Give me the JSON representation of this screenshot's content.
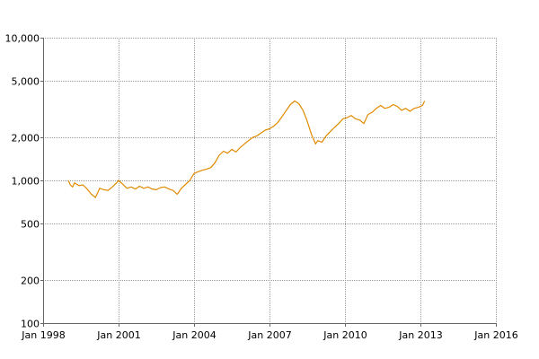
{
  "chart_data": {
    "type": "line",
    "title": "",
    "xlabel": "",
    "ylabel": "",
    "y_scale": "log",
    "ylim": [
      100,
      10000
    ],
    "xlim": [
      "1998-01",
      "2016-01"
    ],
    "grid": true,
    "legend": "none",
    "y_ticks": [
      {
        "value": 100,
        "label": "100"
      },
      {
        "value": 200,
        "label": "200"
      },
      {
        "value": 500,
        "label": "500"
      },
      {
        "value": 1000,
        "label": "1,000"
      },
      {
        "value": 2000,
        "label": "2,000"
      },
      {
        "value": 5000,
        "label": "5,000"
      },
      {
        "value": 10000,
        "label": "10,000"
      }
    ],
    "x_ticks": [
      {
        "value": "1998-01",
        "label": "Jan 1998"
      },
      {
        "value": "2001-01",
        "label": "Jan 2001"
      },
      {
        "value": "2004-01",
        "label": "Jan 2004"
      },
      {
        "value": "2007-01",
        "label": "Jan 2007"
      },
      {
        "value": "2010-01",
        "label": "Jan 2010"
      },
      {
        "value": "2013-01",
        "label": "Jan 2013"
      },
      {
        "value": "2016-01",
        "label": "Jan 2016"
      }
    ],
    "series": [
      {
        "color": "#E08A00",
        "x": [
          "1999-01",
          "1999-02",
          "1999-03",
          "1999-04",
          "1999-06",
          "1999-08",
          "1999-10",
          "1999-12",
          "2000-02",
          "2000-04",
          "2000-06",
          "2000-08",
          "2000-10",
          "2000-12",
          "2001-01",
          "2001-03",
          "2001-05",
          "2001-07",
          "2001-09",
          "2001-11",
          "2002-01",
          "2002-03",
          "2002-05",
          "2002-07",
          "2002-09",
          "2002-11",
          "2003-01",
          "2003-03",
          "2003-05",
          "2003-07",
          "2003-09",
          "2003-11",
          "2004-01",
          "2004-03",
          "2004-05",
          "2004-07",
          "2004-09",
          "2004-11",
          "2005-01",
          "2005-03",
          "2005-05",
          "2005-07",
          "2005-09",
          "2005-11",
          "2006-01",
          "2006-03",
          "2006-05",
          "2006-07",
          "2006-09",
          "2006-11",
          "2007-01",
          "2007-03",
          "2007-05",
          "2007-07",
          "2007-09",
          "2007-11",
          "2008-01",
          "2008-03",
          "2008-05",
          "2008-07",
          "2008-09",
          "2008-11",
          "2008-12",
          "2009-02",
          "2009-04",
          "2009-06",
          "2009-08",
          "2009-10",
          "2009-12",
          "2010-02",
          "2010-04",
          "2010-06",
          "2010-08",
          "2010-10",
          "2010-12",
          "2011-02",
          "2011-04",
          "2011-06",
          "2011-08",
          "2011-10",
          "2011-12",
          "2012-02",
          "2012-04",
          "2012-06",
          "2012-08",
          "2012-10",
          "2012-12",
          "2013-02",
          "2013-03"
        ],
        "values": [
          1000,
          930,
          900,
          960,
          920,
          930,
          870,
          800,
          760,
          880,
          860,
          850,
          900,
          960,
          1000,
          940,
          880,
          900,
          870,
          910,
          880,
          900,
          870,
          860,
          890,
          900,
          870,
          850,
          800,
          880,
          940,
          1000,
          1120,
          1150,
          1180,
          1200,
          1230,
          1330,
          1500,
          1600,
          1550,
          1650,
          1580,
          1700,
          1800,
          1900,
          2000,
          2050,
          2150,
          2250,
          2300,
          2400,
          2550,
          2800,
          3100,
          3400,
          3600,
          3450,
          3100,
          2600,
          2100,
          1800,
          1900,
          1850,
          2050,
          2200,
          2350,
          2500,
          2700,
          2750,
          2850,
          2700,
          2650,
          2500,
          2900,
          3000,
          3200,
          3350,
          3200,
          3250,
          3400,
          3300,
          3100,
          3200,
          3050,
          3200,
          3250,
          3350,
          3600
        ]
      }
    ]
  }
}
